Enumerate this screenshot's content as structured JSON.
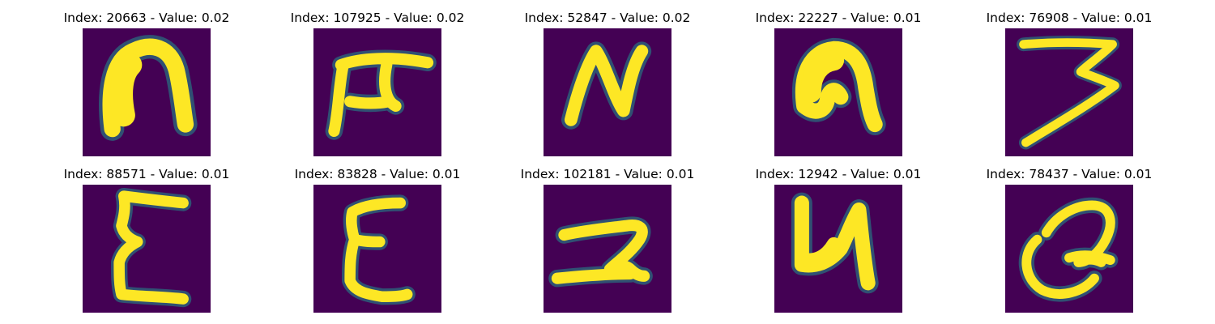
{
  "figure": {
    "background": "#ffffff",
    "colormap": "viridis",
    "image_background_color": "#440154",
    "stroke_color": "#fde725",
    "panels": [
      {
        "title": "Index: 20663 - Value: 0.02",
        "glyph": "n-shape-icon"
      },
      {
        "title": "Index: 107925 - Value: 0.02",
        "glyph": "pi-shape-icon"
      },
      {
        "title": "Index: 52847 - Value: 0.02",
        "glyph": "n-zigzag-icon"
      },
      {
        "title": "Index: 22227 - Value: 0.01",
        "glyph": "n-hook-icon"
      },
      {
        "title": "Index: 76908 - Value: 0.01",
        "glyph": "three-shape-icon"
      },
      {
        "title": "Index: 88571 - Value: 0.01",
        "glyph": "epsilon-shape-icon"
      },
      {
        "title": "Index: 83828 - Value: 0.01",
        "glyph": "epsilon-shape-icon"
      },
      {
        "title": "Index: 102181 - Value: 0.01",
        "glyph": "two-loop-icon"
      },
      {
        "title": "Index: 12942 - Value: 0.01",
        "glyph": "u-hook-icon"
      },
      {
        "title": "Index: 78437 - Value: 0.01",
        "glyph": "q-loop-icon"
      }
    ]
  }
}
